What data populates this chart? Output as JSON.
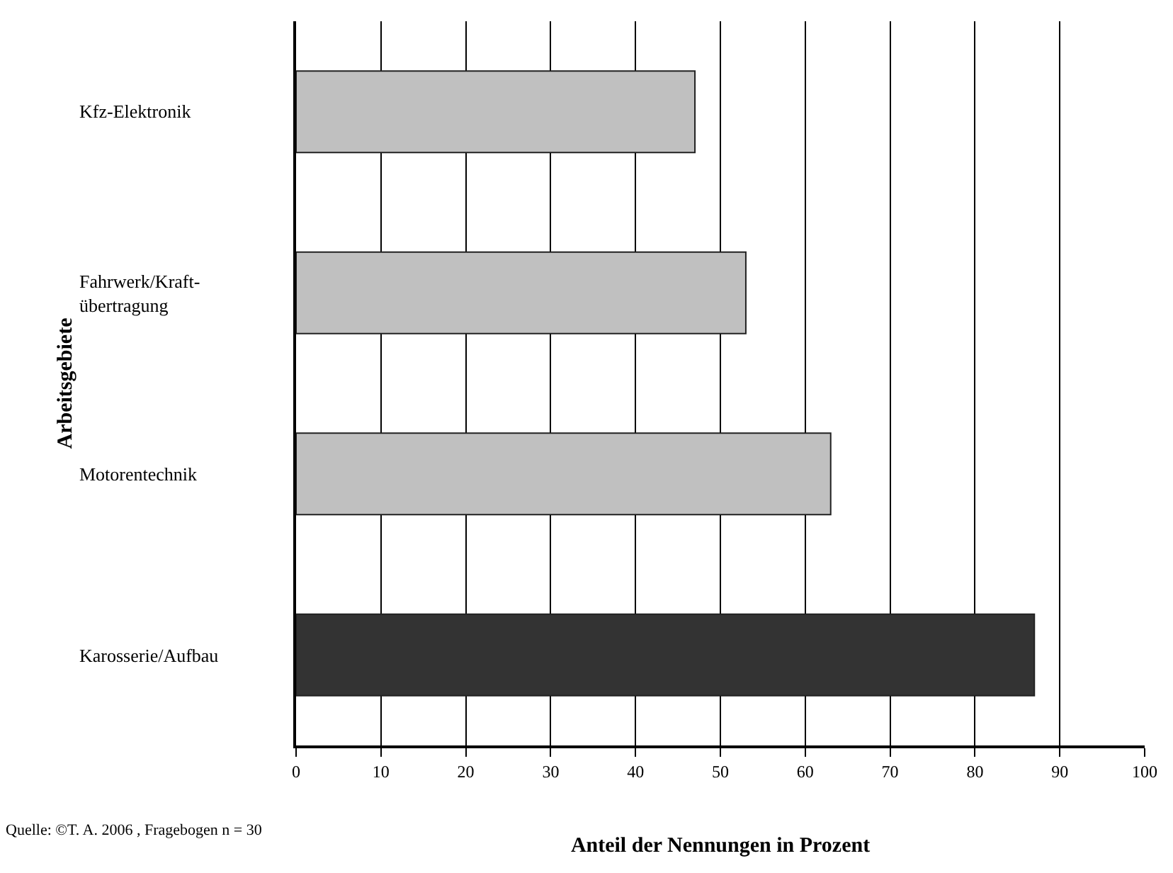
{
  "chart_data": {
    "type": "bar",
    "orientation": "horizontal",
    "categories": [
      "Kfz-Elektronik",
      "Fahrwerk/Kraft-\nübertragung",
      "Motorentechnik",
      "Karosserie/Aufbau"
    ],
    "values": [
      47,
      53,
      63,
      87
    ],
    "colors": [
      "#c0c0c0",
      "#c0c0c0",
      "#c0c0c0",
      "#333333"
    ],
    "xlim": [
      0,
      100
    ],
    "xticks": [
      0,
      10,
      20,
      30,
      40,
      50,
      60,
      70,
      80,
      90,
      100
    ],
    "xlabel": "Anteil der Nennungen in Prozent",
    "ylabel": "Arbeitsgebiete",
    "annotations": [
      "Quelle: ©T. A. 2006 , Fragebogen n = 30"
    ],
    "grid": "x",
    "legend": false
  }
}
